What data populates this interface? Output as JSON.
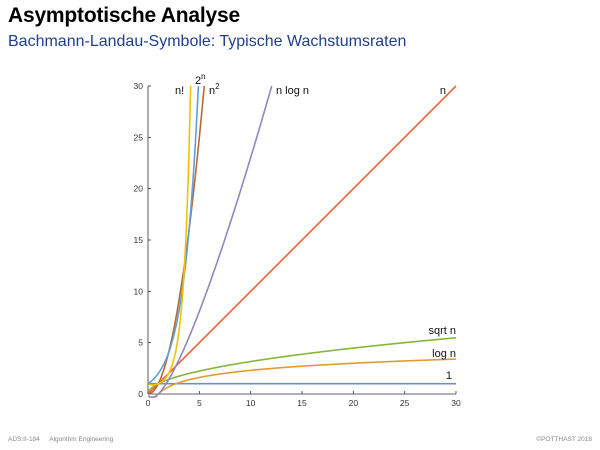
{
  "slide": {
    "title": "Asymptotische Analyse",
    "subtitle": "Bachmann-Landau-Symbole: Typische Wachstumsraten"
  },
  "footer": {
    "course_id": "ADS:II-184",
    "course_name": "Algorithm Engineering",
    "copyright": "©POTTHAST 2018"
  },
  "chart_data": {
    "type": "line",
    "title": "",
    "xlabel": "",
    "ylabel": "",
    "xlim": [
      0,
      30
    ],
    "ylim": [
      0,
      30
    ],
    "x_ticks": [
      0,
      5,
      10,
      15,
      20,
      25,
      30
    ],
    "y_ticks": [
      0,
      5,
      10,
      15,
      20,
      25,
      30
    ],
    "grid": false,
    "series": [
      {
        "name": "1",
        "function": "1",
        "color": "#6f8fc4",
        "label_text": "1"
      },
      {
        "name": "log n",
        "function": "log n",
        "color": "#e69a2e",
        "label_text": "log n"
      },
      {
        "name": "sqrt n",
        "function": "sqrt n",
        "color": "#86b53c",
        "label_text": "sqrt n"
      },
      {
        "name": "n",
        "function": "n",
        "color": "#f0603a",
        "label_text": "n"
      },
      {
        "name": "n log n",
        "function": "n log n",
        "color": "#8c88c0",
        "label_text": "n log n"
      },
      {
        "name": "n²",
        "function": "n^2",
        "color": "#b9692f",
        "label_base": "n",
        "label_exp": "2"
      },
      {
        "name": "2ⁿ",
        "function": "2^n",
        "color": "#5fa0d8",
        "label_base": "2",
        "label_exp": "n"
      },
      {
        "name": "n!",
        "function": "n!",
        "color": "#f2c200",
        "label_text": "n!"
      }
    ]
  }
}
